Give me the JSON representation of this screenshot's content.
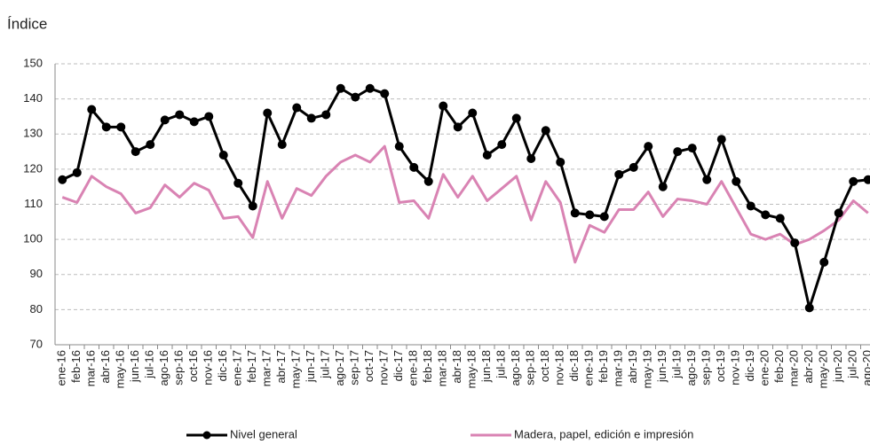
{
  "chart_data": {
    "type": "line",
    "y_label": "Índice",
    "categories": [
      "ene-16",
      "feb-16",
      "mar-16",
      "abr-16",
      "may-16",
      "jun-16",
      "jul-16",
      "ago-16",
      "sep-16",
      "oct-16",
      "nov-16",
      "dic-16",
      "ene-17",
      "feb-17",
      "mar-17",
      "abr-17",
      "may-17",
      "jun-17",
      "jul-17",
      "ago-17",
      "sep-17",
      "oct-17",
      "nov-17",
      "dic-17",
      "ene-18",
      "feb-18",
      "mar-18",
      "abr-18",
      "may-18",
      "jun-18",
      "jul-18",
      "ago-18",
      "sep-18",
      "oct-18",
      "nov-18",
      "dic-18",
      "ene-19",
      "feb-19",
      "mar-19",
      "abr-19",
      "may-19",
      "jun-19",
      "jul-19",
      "ago-19",
      "sep-19",
      "oct-19",
      "nov-19",
      "dic-19",
      "ene-20",
      "feb-20",
      "mar-20",
      "abr-20",
      "may-20",
      "jun-20",
      "jul-20",
      "ago-20"
    ],
    "series": [
      {
        "name": "Nivel general",
        "color": "#000000",
        "markers": true,
        "values": [
          117,
          119,
          137,
          132,
          132,
          125,
          127,
          134,
          135.5,
          133.5,
          135,
          124,
          116,
          109.5,
          136,
          127,
          137.5,
          134.5,
          135.5,
          143,
          140.5,
          143,
          141.5,
          126.5,
          120.5,
          116.5,
          138,
          132,
          136,
          124,
          127,
          134.5,
          123,
          131,
          122,
          107.5,
          107,
          106.5,
          118.5,
          120.5,
          126.5,
          115,
          125,
          126,
          117,
          128.5,
          116.5,
          109.5,
          107,
          106,
          99,
          80.5,
          93.5,
          107.5,
          116.5,
          117
        ]
      },
      {
        "name": "Madera, papel, edición e impresión",
        "color": "#d983b3",
        "markers": false,
        "values": [
          112,
          110.5,
          118,
          115,
          113,
          107.5,
          109,
          115.5,
          112,
          116,
          114,
          106,
          106.5,
          100.5,
          116.5,
          106,
          114.5,
          112.5,
          118,
          122,
          124,
          122,
          126.5,
          110.5,
          111,
          106,
          118.5,
          112,
          118,
          111,
          114.5,
          118,
          105.5,
          116.5,
          110.5,
          93.5,
          104,
          102,
          108.5,
          108.5,
          113.5,
          106.5,
          111.5,
          111,
          110,
          116.5,
          109,
          101.5,
          100,
          101.5,
          98.5,
          100,
          102.5,
          105.5,
          111,
          107.5
        ]
      }
    ],
    "ylim": [
      70,
      150
    ],
    "yticks": [
      70,
      80,
      90,
      100,
      110,
      120,
      130,
      140,
      150
    ],
    "grid": true
  }
}
